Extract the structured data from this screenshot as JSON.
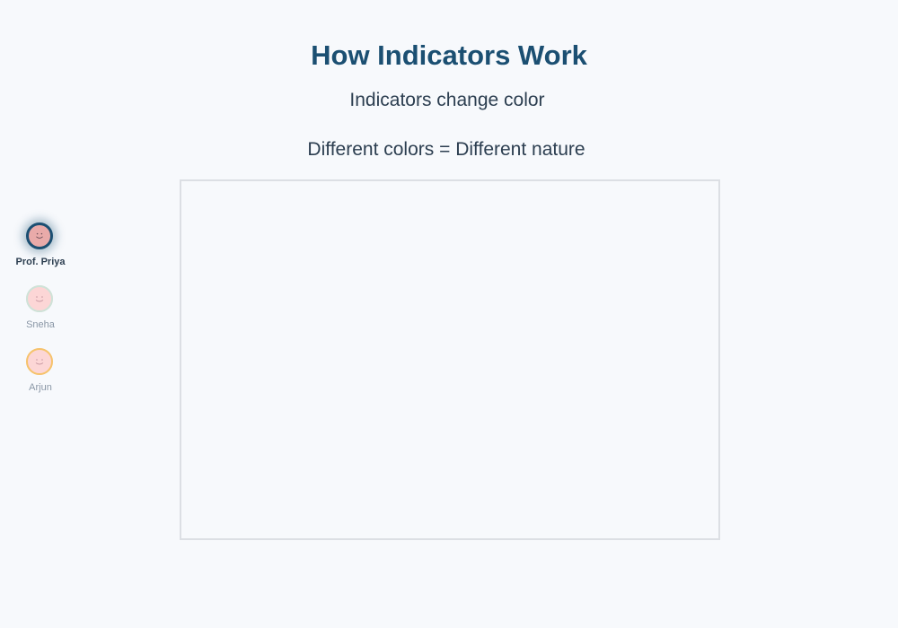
{
  "slide": {
    "title": "How Indicators Work",
    "line1": "Indicators change color",
    "line2": "Different colors = Different nature"
  },
  "speakers": [
    {
      "name": "Prof. Priya",
      "active": true,
      "ring_color": "#1b4f72",
      "icon": "smiley-face-icon"
    },
    {
      "name": "Sneha",
      "active": false,
      "ring_color": "#cde3d8",
      "icon": "smiley-face-icon"
    },
    {
      "name": "Arjun",
      "active": false,
      "ring_color": "#f6c36b",
      "icon": "smiley-face-icon"
    }
  ],
  "colors": {
    "background": "#f7f9fc",
    "title": "#1b4f72",
    "text": "#2c3e50",
    "board_border": "#dcdfe4"
  }
}
